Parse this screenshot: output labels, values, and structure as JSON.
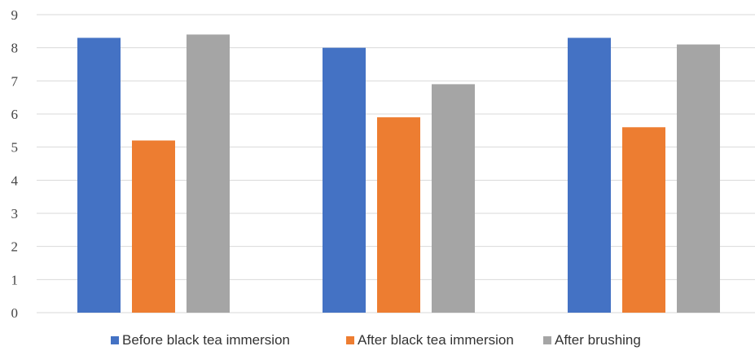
{
  "chart_data": {
    "type": "bar",
    "categories": [
      "",
      "",
      ""
    ],
    "series": [
      {
        "name": "Before black tea immersion",
        "values": [
          8.3,
          8.0,
          8.3
        ],
        "color": "#4472C4"
      },
      {
        "name": "After black tea immersion",
        "values": [
          5.2,
          5.9,
          5.6
        ],
        "color": "#ED7D31"
      },
      {
        "name": "After brushing",
        "values": [
          8.4,
          6.9,
          8.1
        ],
        "color": "#A5A5A5"
      }
    ],
    "title": "",
    "xlabel": "",
    "ylabel": "",
    "ylim": [
      0,
      9
    ],
    "yticks": [
      "0",
      "1",
      "2",
      "3",
      "4",
      "5",
      "6",
      "7",
      "8",
      "9"
    ],
    "grid": true,
    "gridline_color": "#D9D9D9",
    "legend_position": "bottom"
  }
}
